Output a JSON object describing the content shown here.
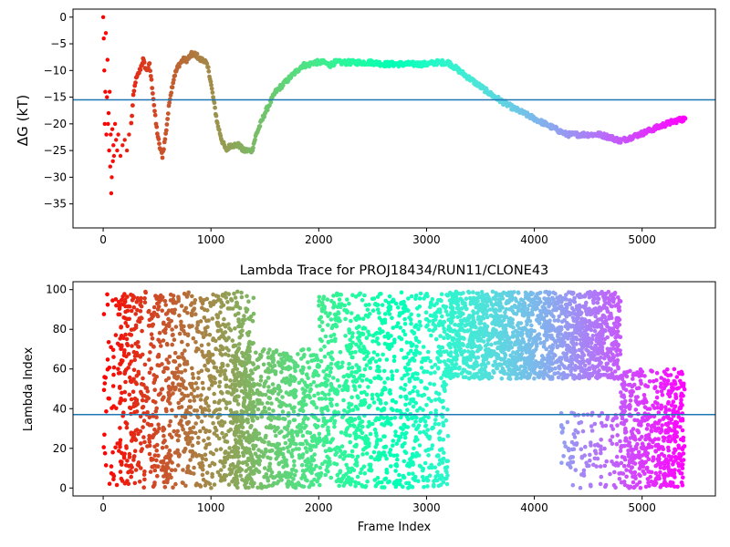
{
  "chart_data": [
    {
      "type": "scatter",
      "title": "",
      "xlabel": "",
      "ylabel": "ΔG (kT)",
      "ylabel_symbol": "ΔG",
      "ylabel_units": "(kT)",
      "xlim": [
        -280,
        5680
      ],
      "ylim": [
        -39.5,
        1.5
      ],
      "xticks": [
        0,
        1000,
        2000,
        3000,
        4000,
        5000
      ],
      "yticks": [
        0,
        -5,
        -10,
        -15,
        -20,
        -25,
        -30,
        -35
      ],
      "grid": false,
      "colormap": "rainbow (red at early frames → violet at late frames)",
      "hline": {
        "y": -15.5,
        "color": "#1f77b4"
      },
      "trace": [
        [
          0,
          0
        ],
        [
          5,
          -4
        ],
        [
          10,
          -10
        ],
        [
          15,
          -20
        ],
        [
          20,
          -14
        ],
        [
          25,
          -3
        ],
        [
          30,
          -22
        ],
        [
          35,
          -15
        ],
        [
          40,
          -8
        ],
        [
          45,
          -20
        ],
        [
          50,
          -18
        ],
        [
          55,
          -25
        ],
        [
          60,
          -14
        ],
        [
          65,
          -28
        ],
        [
          70,
          -22
        ],
        [
          75,
          -33
        ],
        [
          80,
          -30
        ],
        [
          85,
          -21
        ],
        [
          90,
          -27
        ],
        [
          95,
          -24
        ],
        [
          100,
          -26
        ],
        [
          110,
          -20
        ],
        [
          120,
          -23
        ],
        [
          130,
          -25
        ],
        [
          140,
          -22
        ],
        [
          160,
          -26
        ],
        [
          180,
          -24
        ],
        [
          200,
          -23
        ],
        [
          220,
          -25
        ],
        [
          240,
          -22
        ],
        [
          260,
          -20
        ],
        [
          280,
          -15
        ],
        [
          300,
          -12
        ],
        [
          320,
          -11
        ],
        [
          340,
          -10
        ],
        [
          370,
          -8
        ],
        [
          400,
          -10
        ],
        [
          430,
          -9
        ],
        [
          460,
          -14
        ],
        [
          490,
          -20
        ],
        [
          520,
          -24
        ],
        [
          550,
          -26
        ],
        [
          580,
          -22
        ],
        [
          620,
          -15
        ],
        [
          660,
          -11
        ],
        [
          700,
          -9
        ],
        [
          740,
          -8
        ],
        [
          780,
          -8
        ],
        [
          820,
          -7
        ],
        [
          860,
          -7
        ],
        [
          900,
          -8
        ],
        [
          940,
          -8
        ],
        [
          980,
          -10
        ],
        [
          1020,
          -15
        ],
        [
          1060,
          -20
        ],
        [
          1100,
          -23
        ],
        [
          1140,
          -25
        ],
        [
          1180,
          -24
        ],
        [
          1220,
          -24
        ],
        [
          1260,
          -24
        ],
        [
          1300,
          -25
        ],
        [
          1340,
          -25
        ],
        [
          1380,
          -25
        ],
        [
          1420,
          -22
        ],
        [
          1460,
          -20
        ],
        [
          1500,
          -18
        ],
        [
          1550,
          -16
        ],
        [
          1600,
          -14
        ],
        [
          1650,
          -13
        ],
        [
          1700,
          -12
        ],
        [
          1750,
          -11
        ],
        [
          1800,
          -10
        ],
        [
          1850,
          -9
        ],
        [
          1900,
          -9
        ],
        [
          1950,
          -8.5
        ],
        [
          2000,
          -8.5
        ],
        [
          2050,
          -8.5
        ],
        [
          2100,
          -9
        ],
        [
          2150,
          -8.5
        ],
        [
          2200,
          -8.5
        ],
        [
          2300,
          -8.5
        ],
        [
          2400,
          -8.5
        ],
        [
          2500,
          -8.5
        ],
        [
          2600,
          -8.8
        ],
        [
          2700,
          -8.8
        ],
        [
          2800,
          -8.8
        ],
        [
          2900,
          -8.8
        ],
        [
          3000,
          -8.8
        ],
        [
          3100,
          -8.5
        ],
        [
          3200,
          -8.5
        ],
        [
          3300,
          -10
        ],
        [
          3400,
          -11.5
        ],
        [
          3500,
          -13
        ],
        [
          3600,
          -14.5
        ],
        [
          3700,
          -15.8
        ],
        [
          3800,
          -17
        ],
        [
          3900,
          -18
        ],
        [
          4000,
          -19
        ],
        [
          4100,
          -20
        ],
        [
          4200,
          -21
        ],
        [
          4300,
          -22
        ],
        [
          4400,
          -22
        ],
        [
          4500,
          -22
        ],
        [
          4600,
          -22
        ],
        [
          4700,
          -22.5
        ],
        [
          4800,
          -23.2
        ],
        [
          4900,
          -22.5
        ],
        [
          5000,
          -21.8
        ],
        [
          5100,
          -21
        ],
        [
          5200,
          -20.2
        ],
        [
          5300,
          -19.5
        ],
        [
          5400,
          -19
        ]
      ]
    },
    {
      "type": "scatter",
      "title": "Lambda Trace for PROJ18434/RUN11/CLONE43",
      "xlabel": "Frame Index",
      "ylabel": "Lambda Index",
      "xlim": [
        -280,
        5680
      ],
      "ylim": [
        -4,
        104
      ],
      "xticks": [
        0,
        1000,
        2000,
        3000,
        4000,
        5000
      ],
      "yticks": [
        0,
        20,
        40,
        60,
        80,
        100
      ],
      "grid": false,
      "colormap": "rainbow (red at early frames → violet at late frames)",
      "hline": {
        "y": 37,
        "color": "#1f77b4"
      },
      "frame_max": 5400,
      "lambda_range": [
        0,
        99
      ],
      "density_profile": [
        {
          "from": 0,
          "to": 150,
          "min": 0,
          "max": 98,
          "density": 0.35
        },
        {
          "from": 150,
          "to": 1400,
          "min": 0,
          "max": 99,
          "density": 1.0
        },
        {
          "from": 1200,
          "to": 2000,
          "min": 0,
          "max": 70,
          "density": 1.0
        },
        {
          "from": 2000,
          "to": 3200,
          "min": 0,
          "max": 99,
          "density": 1.0
        },
        {
          "from": 3200,
          "to": 4800,
          "min": 55,
          "max": 99,
          "density": 1.2
        },
        {
          "from": 4250,
          "to": 4800,
          "min": 0,
          "max": 38,
          "density": 0.25
        },
        {
          "from": 4800,
          "to": 5400,
          "min": 0,
          "max": 60,
          "density": 1.0
        }
      ]
    }
  ]
}
